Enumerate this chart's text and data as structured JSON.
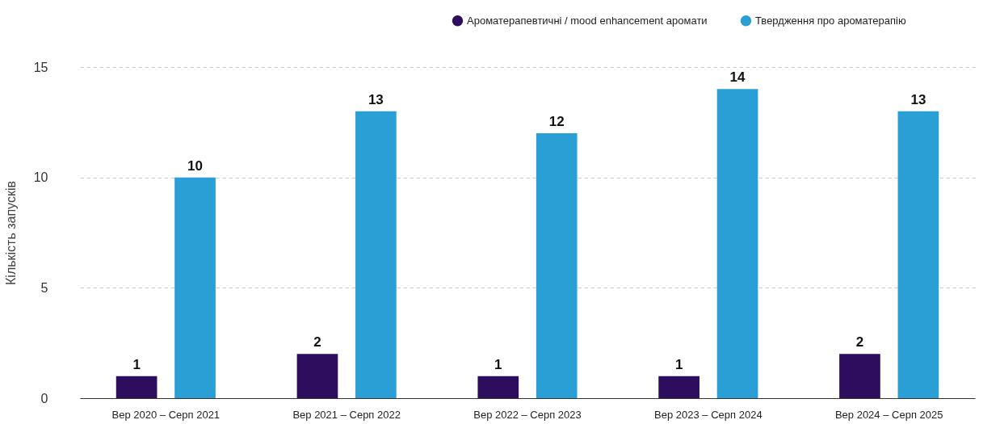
{
  "chart_data": {
    "type": "bar",
    "ylabel": "Кількість запусків",
    "categories": [
      "Вер 2020 – Серп 2021",
      "Вер 2021 – Серп 2022",
      "Вер 2022 – Серп 2023",
      "Вер 2023 – Серп 2024",
      "Вер 2024 – Серп 2025"
    ],
    "series": [
      {
        "name": "Ароматерапевтичні / mood enhancement аромати",
        "color": "#2e0d5e",
        "values": [
          1,
          2,
          1,
          1,
          2
        ]
      },
      {
        "name": "Твердження про ароматерапію",
        "color": "#2a9fd6",
        "values": [
          10,
          13,
          12,
          14,
          13
        ]
      }
    ],
    "ylim": [
      0,
      15
    ],
    "yticks": [
      0,
      5,
      10,
      15
    ],
    "grid": "y",
    "legend": "top right",
    "data_labels": true
  }
}
